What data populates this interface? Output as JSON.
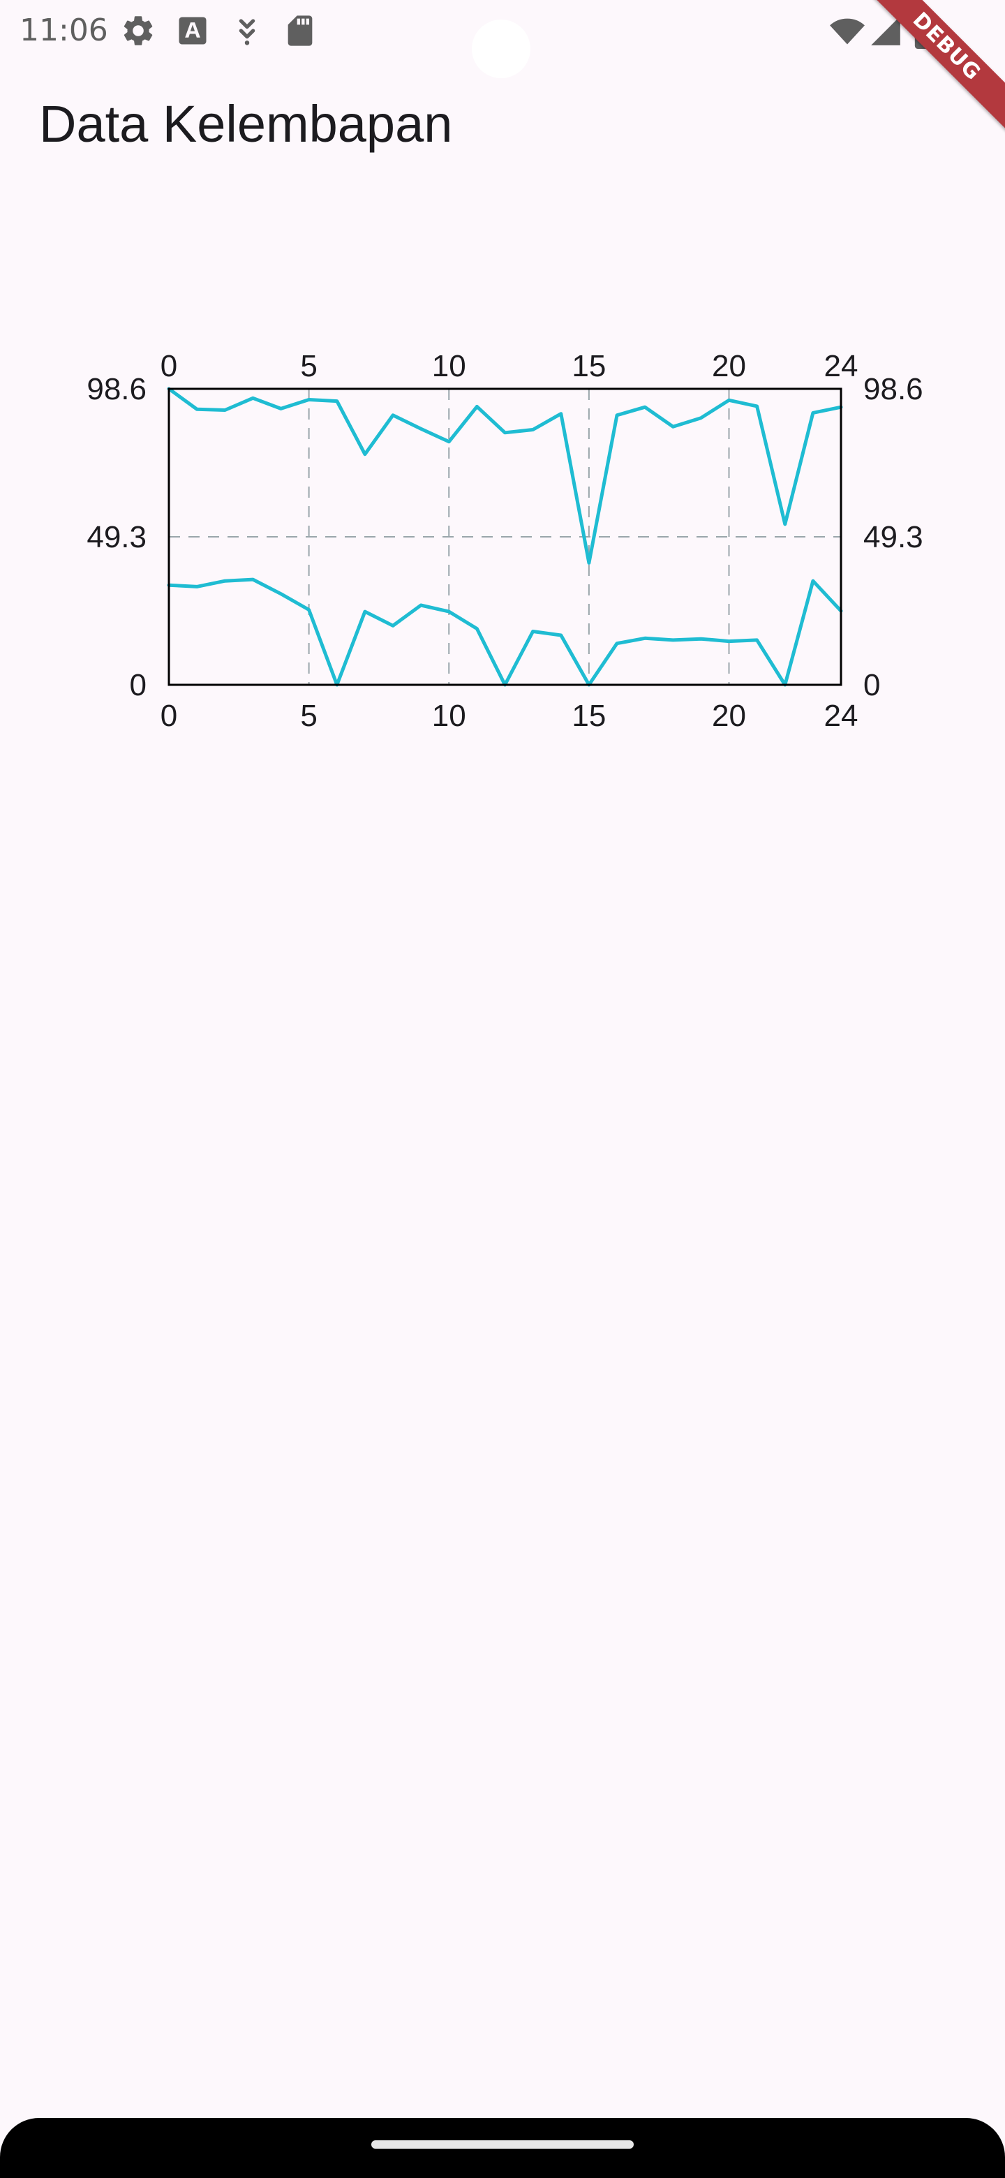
{
  "status_bar": {
    "time": "11:06",
    "icons": [
      "gear-icon",
      "font-a-icon",
      "download-arrow-icon",
      "sd-card-icon",
      "wifi-icon",
      "signal-icon",
      "battery-icon"
    ]
  },
  "debug_banner": {
    "label": "DEBUG",
    "color": "#b3393e"
  },
  "app_bar": {
    "title": "Data Kelembapan"
  },
  "colors": {
    "background": "#fdf8fc",
    "series_line": "#1fbcd2",
    "grid": "#9aa6ab",
    "frame": "#000000"
  },
  "chart_data": {
    "type": "line",
    "xlim": [
      0,
      24
    ],
    "ylim": [
      0,
      98.6
    ],
    "x_ticks": [
      "0",
      "5",
      "10",
      "15",
      "20",
      "24"
    ],
    "y_ticks": [
      "0",
      "49.3",
      "98.6"
    ],
    "grid": true,
    "axes_labels_on": [
      "top",
      "bottom",
      "left",
      "right"
    ],
    "series": [
      {
        "values": [
          98.6,
          91.8,
          91.5,
          95.5,
          92.0,
          95.0,
          94.5,
          76.8,
          89.8,
          85.3,
          81.0,
          92.7,
          84.0,
          85.0,
          90.3,
          40.6,
          89.8,
          92.5,
          86.0,
          88.9,
          94.8,
          92.8,
          53.5,
          90.6,
          92.5
        ]
      },
      {
        "values": [
          33.2,
          32.7,
          34.6,
          35.1,
          30.3,
          25.0,
          0.0,
          24.4,
          19.7,
          26.5,
          24.4,
          18.7,
          0.0,
          17.8,
          16.5,
          0.0,
          13.8,
          15.5,
          14.9,
          15.3,
          14.5,
          14.9,
          0.0,
          34.6,
          24.6
        ]
      }
    ]
  }
}
